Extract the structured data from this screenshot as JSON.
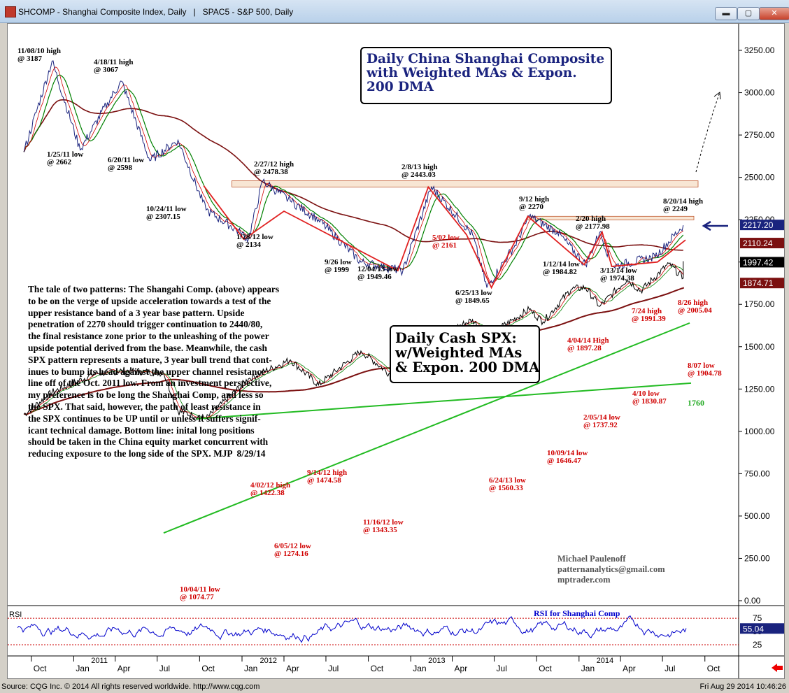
{
  "window": {
    "title": "SHCOMP - Shanghai Composite Index, Daily   |   SPAC5 - S&P 500, Daily",
    "min_icon": "minimize-icon",
    "max_icon": "maximize-icon",
    "close_icon": "close-icon",
    "min_label": "▬",
    "max_label": "▢",
    "close_label": "✕"
  },
  "title_shanghai": "Daily China Shanghai Composite\nwith Weighted MAs & Expon.\n200 DMA",
  "title_spx": "Daily Cash SPX:\nw/Weighted MAs\n& Expon. 200 DMA",
  "commentary": "The tale of two patterns: The Shangahi Comp. (above) appears\nto be on the verge of upside acceleration towards a test of the\nupper resistance band of a 3 year base pattern. Upside\npenetration of 2270 should trigger continuation to 2440/80,\nthe final resistance zone prior to the unleashing of the power\nupside potential derived from the base. Meanwhile, the cash\nSPX pattern represents a mature, 3 year bull trend that cont-\ninues to bump its head against the upper channel resistance\nline off of the Oct. 2011 low. From an investment perspective,\nmy preference is to be long the Shanghai Comp, and less so\nthe SPX. That said, however, the path of least resistance in\nthe SPX continues to be UP until or unless it suffers signif-\nicant technical damage. Bottom line: inital long positions\nshould be taken in the China equity market concurrent with\nreducing exposure to the long side of the SPX. MJP  8/29/14",
  "credit": "Michael Paulenoff\npatternanalytics@gmail.com\nmptrader.com",
  "status": {
    "left": "Source: CQG Inc. © 2014 All rights reserved worldwide. http://www.cqg.com",
    "right": "Fri Aug 29 2014 10:46:26"
  },
  "colors": {
    "shanghai": "#1a237e",
    "spx": "#000000",
    "ma_red": "#d00000",
    "ma_green": "#008000",
    "dma": "#7b1010",
    "channel": "#22bb22",
    "support_line": "#e02020",
    "rsi": "#0000cc"
  },
  "chart_data": [
    {
      "type": "line",
      "name": "SHCOMP",
      "y_axis_ticks": [
        "3250.00",
        "3000.00",
        "2750.00",
        "2500.00",
        "2250.00",
        "2000.00",
        "1750.00",
        "1500.00",
        "1250.00",
        "1000.00",
        "750.00",
        "500.00",
        "250.00",
        "0.00"
      ],
      "ylim": [
        0,
        3390
      ],
      "last_price": "2217.20",
      "dma_value": "2110.24",
      "resistance_band_1": [
        2443,
        2480
      ],
      "resistance_band_2": [
        2249,
        2270
      ],
      "x": [
        "2010-09",
        "2010-11",
        "2011-01",
        "2011-03",
        "2011-04",
        "2011-06",
        "2011-08",
        "2011-10",
        "2011-12",
        "2012-01",
        "2012-02",
        "2012-04",
        "2012-06",
        "2012-09",
        "2012-12",
        "2013-02",
        "2013-05",
        "2013-06",
        "2013-08",
        "2013-09",
        "2013-11",
        "2014-01",
        "2014-02",
        "2014-03",
        "2014-06",
        "2014-08"
      ],
      "values": [
        2650,
        3187,
        2662,
        2940,
        3067,
        2598,
        2720,
        2307,
        2200,
        2134,
        2478,
        2360,
        2250,
        1999,
        1949,
        2443,
        2161,
        1849,
        2100,
        2270,
        2177,
        1984,
        2177,
        1974,
        2030,
        2217
      ],
      "annotations": [
        {
          "text": "11/08/10 high\n@ 3187",
          "color": "black"
        },
        {
          "text": "4/18/11 high\n@ 3067",
          "color": "black"
        },
        {
          "text": "1/25/11 low\n@ 2662",
          "color": "black"
        },
        {
          "text": "6/20/11 low\n@ 2598",
          "color": "black"
        },
        {
          "text": "10/24/11 low\n@ 2307.15",
          "color": "black"
        },
        {
          "text": "2/27/12 high\n@ 2478.38",
          "color": "black"
        },
        {
          "text": "1/28/12 low\n@ 2134",
          "color": "black"
        },
        {
          "text": "9/26 low\n@ 1999",
          "color": "black"
        },
        {
          "text": "12/04/13 low\n@ 1949.46",
          "color": "black"
        },
        {
          "text": "2/8/13 high\n@ 2443.03",
          "color": "black"
        },
        {
          "text": "5/02 low\n@ 2161",
          "color": "red"
        },
        {
          "text": "6/25/13 low\n@ 1849.65",
          "color": "black"
        },
        {
          "text": "9/12 high\n@ 2270",
          "color": "black"
        },
        {
          "text": "2/20 high\n@ 2177.98",
          "color": "black"
        },
        {
          "text": "1/12/14 low\n@ 1984.82",
          "color": "black"
        },
        {
          "text": "3/13/14 low\n@ 1974.38",
          "color": "black"
        },
        {
          "text": "8/20/14 high\n@ 2249",
          "color": "black"
        }
      ]
    },
    {
      "type": "line",
      "name": "SPAC5",
      "last_price": "1997.42",
      "dma_value": "1874.71",
      "support_label": "1760",
      "x": [
        "2010-09",
        "2010-11",
        "2011-02",
        "2011-04",
        "2011-07",
        "2011-08",
        "2011-10",
        "2012-01",
        "2012-04",
        "2012-06",
        "2012-09",
        "2012-11",
        "2013-01",
        "2013-05",
        "2013-06",
        "2013-09",
        "2013-10",
        "2013-12",
        "2014-01",
        "2014-02",
        "2014-04",
        "2014-05",
        "2014-07",
        "2014-08",
        "2014-08"
      ],
      "values": [
        1100,
        1230,
        1340,
        1360,
        1345,
        1120,
        1074.77,
        1310,
        1422.38,
        1274.16,
        1474.58,
        1343.35,
        1500,
        1660,
        1560.33,
        1720,
        1646.47,
        1840,
        1850,
        1737.92,
        1897.28,
        1830,
        1991.39,
        1904.78,
        2005.04
      ],
      "annotations": [
        {
          "text": "10/04/11 low\n@ 1074.77",
          "color": "red"
        },
        {
          "text": "4/02/12 high\n@ 1422.38",
          "color": "red"
        },
        {
          "text": "6/05/12 low\n@ 1274.16",
          "color": "red"
        },
        {
          "text": "9/14/12 high\n@ 1474.58",
          "color": "red"
        },
        {
          "text": "11/16/12 low\n@ 1343.35",
          "color": "red"
        },
        {
          "text": "6/24/13 low\n@ 1560.33",
          "color": "red"
        },
        {
          "text": "10/09/14 low\n@ 1646.47",
          "color": "red"
        },
        {
          "text": "2/05/14 low\n@ 1737.92",
          "color": "red"
        },
        {
          "text": "4/04/14 High\n@ 1897.28",
          "color": "red"
        },
        {
          "text": "4/10 low\n@ 1830.87",
          "color": "red"
        },
        {
          "text": "7/24 high\n@ 1991.39",
          "color": "red"
        },
        {
          "text": "8/26 high\n@ 2005.04",
          "color": "red"
        },
        {
          "text": "8/07 low\n@ 1904.78",
          "color": "red"
        }
      ]
    },
    {
      "type": "line",
      "name": "RSI",
      "title": "RSI for Shanghai Comp",
      "panel_label": "RSI",
      "y_axis_ticks": [
        "75",
        "50",
        "25"
      ],
      "ylim": [
        0,
        100
      ],
      "last_value": "55.04",
      "overbought": 75,
      "oversold": 25
    }
  ],
  "x_axis": {
    "months": [
      "Oct",
      "Jan",
      "Apr",
      "Jul",
      "Oct",
      "Jan",
      "Apr",
      "Jul",
      "Oct",
      "Jan",
      "Apr",
      "Jul",
      "Oct",
      "Jan",
      "Apr",
      "Jul",
      "Oct"
    ],
    "years": [
      "2011",
      "2012",
      "2013",
      "2014"
    ]
  }
}
